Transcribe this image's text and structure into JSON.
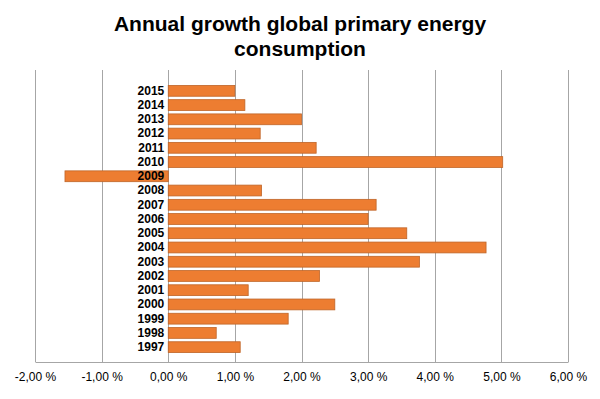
{
  "chart_data": {
    "type": "bar",
    "orientation": "horizontal",
    "title": "Annual growth global primary energy consumption",
    "categories": [
      "1997",
      "1998",
      "1999",
      "2000",
      "2001",
      "2002",
      "2003",
      "2004",
      "2005",
      "2006",
      "2007",
      "2008",
      "2009",
      "2010",
      "2011",
      "2012",
      "2013",
      "2014",
      "2015"
    ],
    "values": [
      1.08,
      0.72,
      1.8,
      2.5,
      1.2,
      2.27,
      3.77,
      4.77,
      3.58,
      3.0,
      3.12,
      1.4,
      -1.55,
      5.02,
      2.22,
      1.38,
      2.0,
      1.15,
      1.0
    ],
    "color": "#ed7d31",
    "xlim": [
      -2,
      6
    ],
    "xticks": [
      {
        "value": -2,
        "label": "-2,00 %"
      },
      {
        "value": -1,
        "label": "-1,00 %"
      },
      {
        "value": 0,
        "label": "0,00 %"
      },
      {
        "value": 1,
        "label": "1,00 %"
      },
      {
        "value": 2,
        "label": "2,00 %"
      },
      {
        "value": 3,
        "label": "3,00 %"
      },
      {
        "value": 4,
        "label": "4,00 %"
      },
      {
        "value": 5,
        "label": "5,00 %"
      },
      {
        "value": 6,
        "label": "6,00 %"
      }
    ],
    "grid": true
  }
}
